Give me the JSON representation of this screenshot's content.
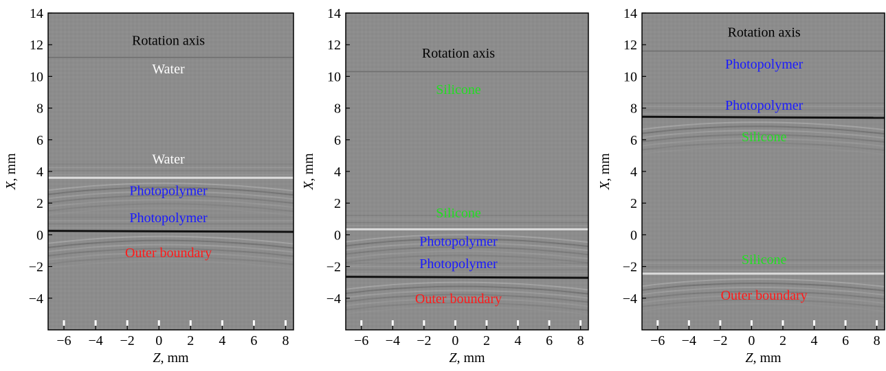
{
  "figure": {
    "panels": 3
  },
  "chart_data": [
    {
      "type": "heatmap",
      "title": "",
      "xlabel": "Z, mm",
      "ylabel": "X, mm",
      "xlim": [
        -7,
        8.5
      ],
      "ylim": [
        -6,
        14
      ],
      "xticks": [
        -6,
        -4,
        -2,
        0,
        2,
        4,
        6,
        8
      ],
      "yticks": [
        -4,
        -2,
        0,
        2,
        4,
        6,
        8,
        10,
        12,
        14
      ],
      "grid": false,
      "background_color": "#8c8c8c",
      "interfaces": [
        {
          "x": 11.2,
          "tone": "faint"
        },
        {
          "x": 3.6,
          "tone": "bright"
        },
        {
          "x": 0.25,
          "tone": "dark"
        }
      ],
      "annotations": [
        {
          "text": "Rotation axis",
          "x": 0.6,
          "y": 12.3,
          "color": "#000000"
        },
        {
          "text": "Water",
          "x": 0.6,
          "y": 10.5,
          "color": "#ffffff"
        },
        {
          "text": "Water",
          "x": 0.6,
          "y": 4.8,
          "color": "#ffffff"
        },
        {
          "text": "Photopolymer",
          "x": 0.6,
          "y": 2.8,
          "color": "#1a1aff"
        },
        {
          "text": "Photopolymer",
          "x": 0.6,
          "y": 1.1,
          "color": "#1a1aff"
        },
        {
          "text": "Outer boundary",
          "x": 0.6,
          "y": -1.1,
          "color": "#ff1a1a"
        }
      ]
    },
    {
      "type": "heatmap",
      "title": "",
      "xlabel": "Z, mm",
      "ylabel": "X, mm",
      "xlim": [
        -7,
        8.5
      ],
      "ylim": [
        -6,
        14
      ],
      "xticks": [
        -6,
        -4,
        -2,
        0,
        2,
        4,
        6,
        8
      ],
      "yticks": [
        -4,
        -2,
        0,
        2,
        4,
        6,
        8,
        10,
        12,
        14
      ],
      "grid": false,
      "background_color": "#8c8c8c",
      "interfaces": [
        {
          "x": 10.3,
          "tone": "faint"
        },
        {
          "x": 0.35,
          "tone": "bright"
        },
        {
          "x": -2.65,
          "tone": "dark"
        }
      ],
      "annotations": [
        {
          "text": "Rotation axis",
          "x": 0.2,
          "y": 11.5,
          "color": "#000000"
        },
        {
          "text": "Silicone",
          "x": 0.2,
          "y": 9.2,
          "color": "#22dd22"
        },
        {
          "text": "Silicone",
          "x": 0.2,
          "y": 1.4,
          "color": "#22dd22"
        },
        {
          "text": "Photopolymer",
          "x": 0.2,
          "y": -0.4,
          "color": "#1a1aff"
        },
        {
          "text": "Photopolymer",
          "x": 0.2,
          "y": -1.8,
          "color": "#1a1aff"
        },
        {
          "text": "Outer boundary",
          "x": 0.2,
          "y": -4.0,
          "color": "#ff1a1a"
        }
      ]
    },
    {
      "type": "heatmap",
      "title": "",
      "xlabel": "Z, mm",
      "ylabel": "X, mm",
      "xlim": [
        -7,
        8.5
      ],
      "ylim": [
        -6,
        14
      ],
      "xticks": [
        -6,
        -4,
        -2,
        0,
        2,
        4,
        6,
        8
      ],
      "yticks": [
        -4,
        -2,
        0,
        2,
        4,
        6,
        8,
        10,
        12,
        14
      ],
      "grid": false,
      "background_color": "#8c8c8c",
      "interfaces": [
        {
          "x": 11.6,
          "tone": "faint"
        },
        {
          "x": 7.45,
          "tone": "dark"
        },
        {
          "x": -2.45,
          "tone": "bright"
        }
      ],
      "annotations": [
        {
          "text": "Rotation axis",
          "x": 0.8,
          "y": 12.8,
          "color": "#000000"
        },
        {
          "text": "Photopolymer",
          "x": 0.8,
          "y": 10.8,
          "color": "#1a1aff"
        },
        {
          "text": "Photopolymer",
          "x": 0.8,
          "y": 8.2,
          "color": "#1a1aff"
        },
        {
          "text": "Silicone",
          "x": 0.8,
          "y": 6.2,
          "color": "#22dd22"
        },
        {
          "text": "Silicone",
          "x": 0.8,
          "y": -1.55,
          "color": "#22dd22"
        },
        {
          "text": "Outer boundary",
          "x": 0.8,
          "y": -3.8,
          "color": "#ff1a1a"
        }
      ]
    }
  ]
}
